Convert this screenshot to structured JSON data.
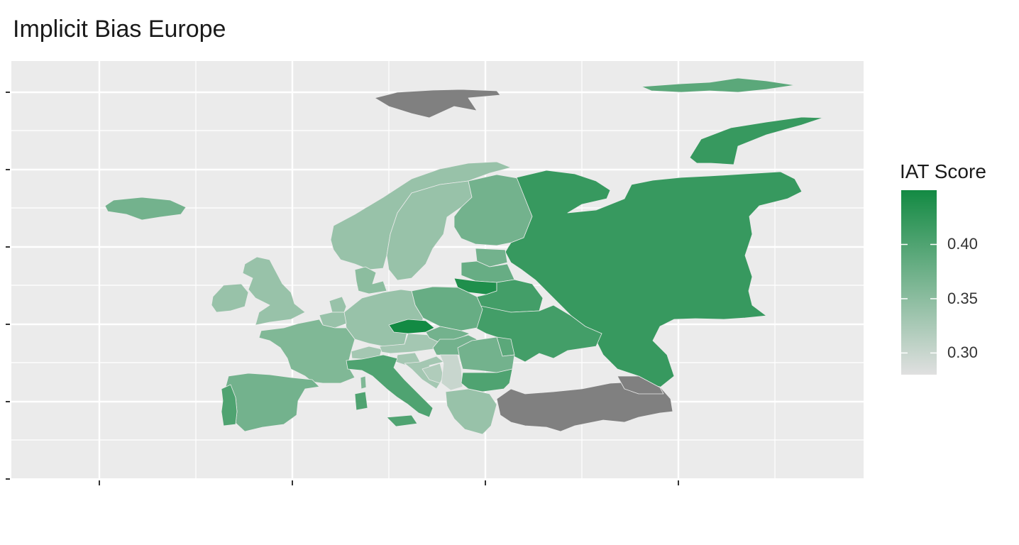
{
  "title": "Implicit Bias Europe",
  "legend": {
    "title": "IAT Score",
    "color_low": "#e0e0e0",
    "color_high": "#138a43",
    "range": [
      0.28,
      0.45
    ],
    "ticks": [
      "0.40",
      "0.35",
      "0.30"
    ]
  },
  "colors": {
    "panel_background": "#ebebeb",
    "grid": "#ffffff",
    "no_data": "#808080"
  },
  "regions": [
    {
      "name": "Svalbard",
      "value": null
    },
    {
      "name": "Franz Josef Land",
      "value": 0.39
    },
    {
      "name": "Novaya Zemlya",
      "value": 0.42
    },
    {
      "name": "Iceland",
      "value": 0.37
    },
    {
      "name": "Norway",
      "value": 0.34
    },
    {
      "name": "Sweden",
      "value": 0.34
    },
    {
      "name": "Finland",
      "value": 0.37
    },
    {
      "name": "Russia",
      "value": 0.42
    },
    {
      "name": "Estonia",
      "value": 0.37
    },
    {
      "name": "Latvia",
      "value": 0.38
    },
    {
      "name": "Lithuania",
      "value": 0.44
    },
    {
      "name": "Belarus",
      "value": 0.41
    },
    {
      "name": "Ukraine",
      "value": 0.41
    },
    {
      "name": "Moldova",
      "value": 0.39
    },
    {
      "name": "Poland",
      "value": 0.38
    },
    {
      "name": "Germany",
      "value": 0.34
    },
    {
      "name": "Denmark",
      "value": 0.35
    },
    {
      "name": "Netherlands",
      "value": 0.34
    },
    {
      "name": "Belgium",
      "value": 0.34
    },
    {
      "name": "United Kingdom",
      "value": 0.34
    },
    {
      "name": "Ireland",
      "value": 0.34
    },
    {
      "name": "France",
      "value": 0.36
    },
    {
      "name": "Switzerland",
      "value": 0.33
    },
    {
      "name": "Austria",
      "value": 0.33
    },
    {
      "name": "Czechia",
      "value": 0.45
    },
    {
      "name": "Slovakia",
      "value": 0.37
    },
    {
      "name": "Hungary",
      "value": 0.37
    },
    {
      "name": "Slovenia",
      "value": 0.33
    },
    {
      "name": "Croatia",
      "value": 0.33
    },
    {
      "name": "Bosnia and Herzegovina",
      "value": 0.32
    },
    {
      "name": "Serbia",
      "value": 0.3
    },
    {
      "name": "Romania",
      "value": 0.37
    },
    {
      "name": "Bulgaria",
      "value": 0.4
    },
    {
      "name": "Greece",
      "value": 0.34
    },
    {
      "name": "Italy",
      "value": 0.4
    },
    {
      "name": "Sardinia",
      "value": 0.4
    },
    {
      "name": "Corsica",
      "value": 0.36
    },
    {
      "name": "Sicily",
      "value": 0.4
    },
    {
      "name": "Spain",
      "value": 0.37
    },
    {
      "name": "Portugal",
      "value": 0.4
    },
    {
      "name": "Turkey",
      "value": null
    },
    {
      "name": "Georgia",
      "value": null
    }
  ]
}
